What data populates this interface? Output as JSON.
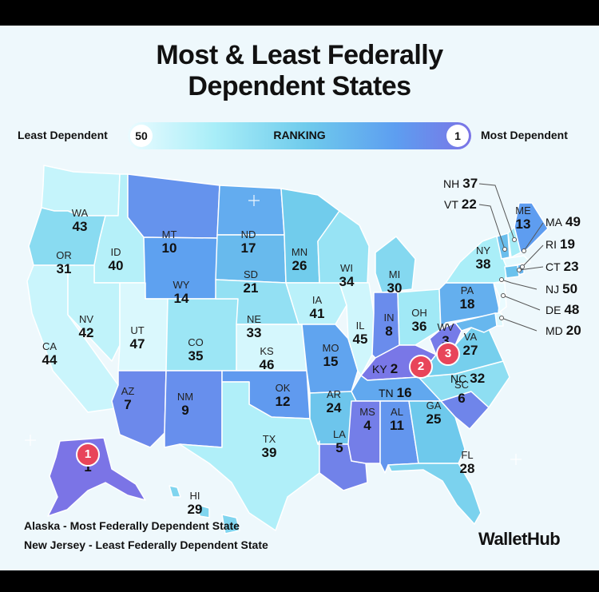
{
  "header": {
    "title_line1": "Most & Least Federally",
    "title_line2": "Dependent States"
  },
  "legend": {
    "least_label": "Least Dependent",
    "most_label": "Most Dependent",
    "low_value": "50",
    "high_value": "1",
    "center_label": "RANKING",
    "colors": [
      "#eafbff",
      "#a9eef8",
      "#6fcbec",
      "#5d9ef0",
      "#7b74e6"
    ]
  },
  "states": [
    {
      "abbr": "WA",
      "rank": 43
    },
    {
      "abbr": "OR",
      "rank": 31
    },
    {
      "abbr": "CA",
      "rank": 44
    },
    {
      "abbr": "ID",
      "rank": 40
    },
    {
      "abbr": "NV",
      "rank": 42
    },
    {
      "abbr": "MT",
      "rank": 10
    },
    {
      "abbr": "WY",
      "rank": 14
    },
    {
      "abbr": "UT",
      "rank": 47
    },
    {
      "abbr": "AZ",
      "rank": 7
    },
    {
      "abbr": "CO",
      "rank": 35
    },
    {
      "abbr": "NM",
      "rank": 9
    },
    {
      "abbr": "ND",
      "rank": 17
    },
    {
      "abbr": "SD",
      "rank": 21
    },
    {
      "abbr": "NE",
      "rank": 33
    },
    {
      "abbr": "KS",
      "rank": 46
    },
    {
      "abbr": "OK",
      "rank": 12
    },
    {
      "abbr": "TX",
      "rank": 39
    },
    {
      "abbr": "MN",
      "rank": 26
    },
    {
      "abbr": "IA",
      "rank": 41
    },
    {
      "abbr": "MO",
      "rank": 15
    },
    {
      "abbr": "AR",
      "rank": 24
    },
    {
      "abbr": "LA",
      "rank": 5
    },
    {
      "abbr": "WI",
      "rank": 34
    },
    {
      "abbr": "IL",
      "rank": 45
    },
    {
      "abbr": "MI",
      "rank": 30
    },
    {
      "abbr": "IN",
      "rank": 8
    },
    {
      "abbr": "OH",
      "rank": 36
    },
    {
      "abbr": "KY",
      "rank": 2
    },
    {
      "abbr": "TN",
      "rank": 16
    },
    {
      "abbr": "MS",
      "rank": 4
    },
    {
      "abbr": "AL",
      "rank": 11
    },
    {
      "abbr": "GA",
      "rank": 25
    },
    {
      "abbr": "FL",
      "rank": 28
    },
    {
      "abbr": "SC",
      "rank": 6
    },
    {
      "abbr": "NC",
      "rank": 32
    },
    {
      "abbr": "VA",
      "rank": 27
    },
    {
      "abbr": "WV",
      "rank": 3
    },
    {
      "abbr": "PA",
      "rank": 18
    },
    {
      "abbr": "NY",
      "rank": 38
    },
    {
      "abbr": "VT",
      "rank": 22
    },
    {
      "abbr": "NH",
      "rank": 37
    },
    {
      "abbr": "ME",
      "rank": 13
    },
    {
      "abbr": "MA",
      "rank": 49
    },
    {
      "abbr": "RI",
      "rank": 19
    },
    {
      "abbr": "CT",
      "rank": 23
    },
    {
      "abbr": "NJ",
      "rank": 50
    },
    {
      "abbr": "DE",
      "rank": 48
    },
    {
      "abbr": "MD",
      "rank": 20
    },
    {
      "abbr": "AK",
      "rank": 1
    },
    {
      "abbr": "HI",
      "rank": 29
    }
  ],
  "footer": {
    "note_most": "Alaska - Most Federally Dependent State",
    "note_least": "New Jersey - Least Federally Dependent State",
    "logo": "WalletHub"
  }
}
